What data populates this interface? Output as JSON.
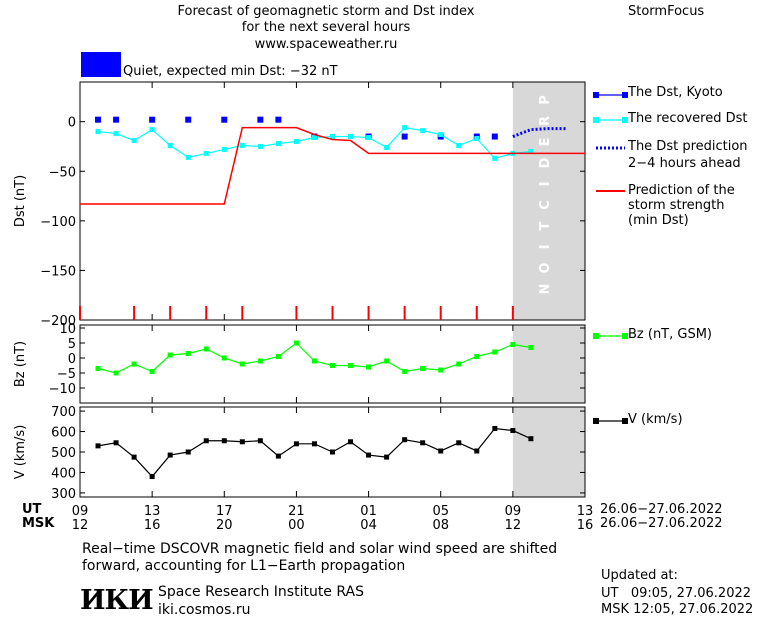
{
  "header": {
    "title_line1": "Forecast of geomagnetic storm and Dst index",
    "title_line2": "for the next several hours",
    "url": "www.spaceweather.ru",
    "brand": "StormFocus"
  },
  "status": {
    "text": "Quiet, expected min Dst: −32 nT",
    "color": "#0000ff"
  },
  "colors": {
    "dst_kyoto": "#0000ff",
    "dst_recovered": "#00ffff",
    "dst_prediction": "#0000ff",
    "storm_strength": "#ff0000",
    "bz": "#00ff00",
    "v": "#000000",
    "prediction_zone": "#d8d8d8"
  },
  "chart_data": {
    "type": "line",
    "prediction_label": "PREDICTION",
    "x": {
      "ut_label": "UT",
      "msk_label": "MSK",
      "ut_ticks": [
        "09",
        "13",
        "17",
        "21",
        "01",
        "05",
        "09",
        "13"
      ],
      "msk_ticks": [
        "12",
        "16",
        "20",
        "00",
        "04",
        "08",
        "12",
        "16"
      ],
      "ut_tick_hours": [
        0,
        4,
        8,
        12,
        16,
        20,
        24,
        28
      ],
      "date_range_ut": "26.06−27.06.2022",
      "date_range_msk": "26.06−27.06.2022",
      "range_hours": [
        0,
        28
      ],
      "prediction_start_hour": 24
    },
    "panels": [
      {
        "id": "dst",
        "ylabel": "Dst (nT)",
        "ylim": [
          -200,
          40
        ],
        "yticks": [
          0,
          -50,
          -100,
          -150,
          -200
        ],
        "ytick_labels": [
          "0",
          "−50",
          "−100",
          "−150",
          "−200"
        ],
        "series": [
          {
            "name": "The Dst, Kyoto",
            "style": "markers",
            "points": [
              [
                1,
                2
              ],
              [
                2,
                2
              ],
              [
                4,
                2
              ],
              [
                6,
                2
              ],
              [
                8,
                2
              ],
              [
                10,
                2
              ],
              [
                11,
                2
              ],
              [
                13,
                -15
              ],
              [
                16,
                -15
              ],
              [
                18,
                -15
              ],
              [
                20,
                -15
              ],
              [
                22,
                -15
              ],
              [
                23,
                -15
              ]
            ]
          },
          {
            "name": "The recovered Dst",
            "style": "line-markers",
            "points": [
              [
                1,
                -10
              ],
              [
                2,
                -12
              ],
              [
                3,
                -19
              ],
              [
                4,
                -8
              ],
              [
                5,
                -24
              ],
              [
                6,
                -36
              ],
              [
                7,
                -32
              ],
              [
                8,
                -28
              ],
              [
                9,
                -24
              ],
              [
                10,
                -25
              ],
              [
                11,
                -22
              ],
              [
                12,
                -20
              ],
              [
                13,
                -16
              ],
              [
                14,
                -15
              ],
              [
                15,
                -15
              ],
              [
                16,
                -16
              ],
              [
                17,
                -26
              ],
              [
                18,
                -6
              ],
              [
                19,
                -9
              ],
              [
                20,
                -13
              ],
              [
                21,
                -24
              ],
              [
                22,
                -17
              ],
              [
                23,
                -37
              ],
              [
                24,
                -32
              ],
              [
                25,
                -30
              ]
            ]
          },
          {
            "name": "The Dst prediction 2−4 hours ahead",
            "legend_lines": [
              "The Dst prediction",
              "2−4 hours ahead"
            ],
            "style": "dotted",
            "points": [
              [
                24,
                -15
              ],
              [
                25,
                -8
              ],
              [
                26,
                -7
              ],
              [
                27,
                -7
              ]
            ]
          },
          {
            "name": "Prediction of the storm strength (min Dst)",
            "legend_lines": [
              "Prediction of the",
              "storm strength",
              "(min Dst)"
            ],
            "style": "step",
            "points": [
              [
                0,
                -83
              ],
              [
                8,
                -83
              ],
              [
                9,
                -6
              ],
              [
                12,
                -6
              ],
              [
                13,
                -13
              ],
              [
                14,
                -18
              ],
              [
                15,
                -19
              ],
              [
                16,
                -32
              ],
              [
                28,
                -32
              ]
            ]
          }
        ],
        "red_ticks_hours": [
          0,
          3,
          5,
          7,
          9,
          12,
          14,
          16,
          18,
          20,
          22,
          24
        ]
      },
      {
        "id": "bz",
        "ylabel": "Bz (nT)",
        "ylim": [
          -15,
          11
        ],
        "yticks": [
          10,
          5,
          0,
          -5,
          -10
        ],
        "ytick_labels": [
          "10",
          "5",
          "0",
          "−5",
          "−10"
        ],
        "series": [
          {
            "name": "Bz (nT, GSM)",
            "style": "line-markers",
            "points": [
              [
                1,
                -3.5
              ],
              [
                2,
                -5
              ],
              [
                3,
                -2
              ],
              [
                4,
                -4.5
              ],
              [
                5,
                1
              ],
              [
                6,
                1.5
              ],
              [
                7,
                3
              ],
              [
                8,
                0
              ],
              [
                9,
                -2
              ],
              [
                10,
                -1
              ],
              [
                11,
                0.5
              ],
              [
                12,
                5
              ],
              [
                13,
                -1
              ],
              [
                14,
                -2.5
              ],
              [
                15,
                -2.5
              ],
              [
                16,
                -3
              ],
              [
                17,
                -1
              ],
              [
                18,
                -4.5
              ],
              [
                19,
                -3.5
              ],
              [
                20,
                -4
              ],
              [
                21,
                -2
              ],
              [
                22,
                0.5
              ],
              [
                23,
                2
              ],
              [
                24,
                4.5
              ],
              [
                25,
                3.5
              ]
            ]
          }
        ]
      },
      {
        "id": "v",
        "ylabel": "V (km/s)",
        "ylim": [
          280,
          720
        ],
        "yticks": [
          700,
          600,
          500,
          400,
          300
        ],
        "ytick_labels": [
          "700",
          "600",
          "500",
          "400",
          "300"
        ],
        "series": [
          {
            "name": "V (km/s)",
            "style": "line-markers",
            "points": [
              [
                1,
                530
              ],
              [
                2,
                545
              ],
              [
                3,
                475
              ],
              [
                4,
                380
              ],
              [
                5,
                485
              ],
              [
                6,
                500
              ],
              [
                7,
                555
              ],
              [
                8,
                555
              ],
              [
                9,
                550
              ],
              [
                10,
                555
              ],
              [
                11,
                480
              ],
              [
                12,
                540
              ],
              [
                13,
                540
              ],
              [
                14,
                500
              ],
              [
                15,
                550
              ],
              [
                16,
                485
              ],
              [
                17,
                475
              ],
              [
                18,
                560
              ],
              [
                19,
                545
              ],
              [
                20,
                505
              ],
              [
                21,
                545
              ],
              [
                22,
                505
              ],
              [
                23,
                615
              ],
              [
                24,
                605
              ],
              [
                25,
                565
              ]
            ]
          }
        ]
      }
    ]
  },
  "footer": {
    "note_line1": "Real−time DSCOVR magnetic field and solar wind speed are shifted",
    "note_line2": "forward, accounting for L1−Earth propagation",
    "logo_text": "ИКИ",
    "institute": "Space Research Institute RAS",
    "site": "iki.cosmos.ru",
    "updated_label": "Updated at:",
    "updated_ut": "UT   09:05, 27.06.2022",
    "updated_msk": "MSK 12:05, 27.06.2022"
  }
}
